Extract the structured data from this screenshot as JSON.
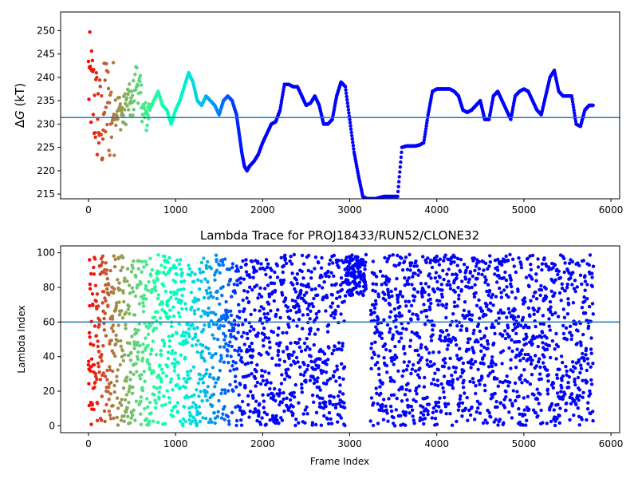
{
  "colors": {
    "hline": "#1f77b4",
    "axis": "#000000"
  },
  "chart_data": [
    {
      "type": "scatter",
      "title": "",
      "xlabel": "",
      "ylabel": "ΔG (kT)",
      "ylabel_italic_part": "G",
      "xlim": [
        -320,
        6100
      ],
      "ylim": [
        214,
        254
      ],
      "xticks": [
        0,
        1000,
        2000,
        3000,
        4000,
        5000,
        6000
      ],
      "yticks": [
        215,
        220,
        225,
        230,
        235,
        240,
        245,
        250
      ],
      "hline": 231.4,
      "colormap": "rainbow",
      "x_range": [
        0,
        5800
      ],
      "trace": [
        [
          0,
          240
        ],
        [
          50,
          236
        ],
        [
          100,
          232
        ],
        [
          150,
          229
        ],
        [
          200,
          235
        ],
        [
          250,
          232
        ],
        [
          300,
          234
        ],
        [
          350,
          233
        ],
        [
          400,
          232
        ],
        [
          450,
          235
        ],
        [
          500,
          234
        ],
        [
          550,
          240
        ],
        [
          600,
          236
        ],
        [
          650,
          231
        ],
        [
          700,
          233
        ],
        [
          750,
          235
        ],
        [
          800,
          237
        ],
        [
          850,
          234
        ],
        [
          900,
          233
        ],
        [
          950,
          230
        ],
        [
          1000,
          233
        ],
        [
          1050,
          235
        ],
        [
          1100,
          238
        ],
        [
          1150,
          241
        ],
        [
          1200,
          239
        ],
        [
          1250,
          235
        ],
        [
          1300,
          234
        ],
        [
          1350,
          236
        ],
        [
          1400,
          235
        ],
        [
          1450,
          234
        ],
        [
          1500,
          232
        ],
        [
          1550,
          235
        ],
        [
          1600,
          236
        ],
        [
          1650,
          235
        ],
        [
          1700,
          232
        ],
        [
          1730,
          228
        ],
        [
          1760,
          224
        ],
        [
          1790,
          221
        ],
        [
          1820,
          220
        ],
        [
          1850,
          221
        ],
        [
          1900,
          222
        ],
        [
          1950,
          223.5
        ],
        [
          2000,
          226
        ],
        [
          2050,
          228
        ],
        [
          2100,
          230
        ],
        [
          2150,
          230.5
        ],
        [
          2200,
          233
        ],
        [
          2250,
          238.5
        ],
        [
          2300,
          238.5
        ],
        [
          2350,
          238
        ],
        [
          2400,
          238
        ],
        [
          2450,
          236
        ],
        [
          2500,
          234
        ],
        [
          2550,
          234.5
        ],
        [
          2600,
          236
        ],
        [
          2650,
          234
        ],
        [
          2700,
          230
        ],
        [
          2750,
          230
        ],
        [
          2800,
          231
        ],
        [
          2850,
          236
        ],
        [
          2900,
          239
        ],
        [
          2950,
          238
        ],
        [
          3000,
          231
        ],
        [
          3050,
          224
        ],
        [
          3100,
          219
        ],
        [
          3150,
          214.5
        ],
        [
          3200,
          214
        ],
        [
          3250,
          214
        ],
        [
          3300,
          214
        ],
        [
          3350,
          214.3
        ],
        [
          3400,
          214.5
        ],
        [
          3450,
          214.5
        ],
        [
          3500,
          214.5
        ],
        [
          3550,
          214.5
        ],
        [
          3600,
          225
        ],
        [
          3650,
          225.3
        ],
        [
          3700,
          225.3
        ],
        [
          3750,
          225.3
        ],
        [
          3800,
          225.5
        ],
        [
          3850,
          226
        ],
        [
          3900,
          232
        ],
        [
          3950,
          237
        ],
        [
          4000,
          237.5
        ],
        [
          4050,
          237.5
        ],
        [
          4100,
          237.5
        ],
        [
          4150,
          237.5
        ],
        [
          4200,
          237
        ],
        [
          4250,
          236
        ],
        [
          4300,
          233
        ],
        [
          4350,
          232.5
        ],
        [
          4400,
          233
        ],
        [
          4450,
          234
        ],
        [
          4500,
          235
        ],
        [
          4550,
          231
        ],
        [
          4600,
          231
        ],
        [
          4650,
          236
        ],
        [
          4700,
          237
        ],
        [
          4750,
          235
        ],
        [
          4800,
          233
        ],
        [
          4850,
          231
        ],
        [
          4900,
          236
        ],
        [
          4950,
          237
        ],
        [
          5000,
          237.5
        ],
        [
          5050,
          237
        ],
        [
          5100,
          235
        ],
        [
          5150,
          233
        ],
        [
          5200,
          232
        ],
        [
          5250,
          236
        ],
        [
          5300,
          240
        ],
        [
          5350,
          241.5
        ],
        [
          5400,
          237
        ],
        [
          5450,
          236
        ],
        [
          5500,
          236
        ],
        [
          5550,
          236
        ],
        [
          5600,
          230
        ],
        [
          5650,
          229.5
        ],
        [
          5700,
          233
        ],
        [
          5750,
          234
        ],
        [
          5800,
          234
        ]
      ]
    },
    {
      "type": "scatter",
      "title": "Lambda Trace for PROJ18433/RUN52/CLONE32",
      "xlabel": "Frame Index",
      "ylabel": "Lambda Index",
      "xlim": [
        -320,
        6100
      ],
      "ylim": [
        -4,
        104
      ],
      "xticks": [
        0,
        1000,
        2000,
        3000,
        4000,
        5000,
        6000
      ],
      "yticks": [
        0,
        20,
        40,
        60,
        80,
        100
      ],
      "hline": 60,
      "colormap": "rainbow",
      "x_range": [
        0,
        5800
      ],
      "y_range": [
        0,
        99
      ],
      "point_count": 3000
    }
  ]
}
